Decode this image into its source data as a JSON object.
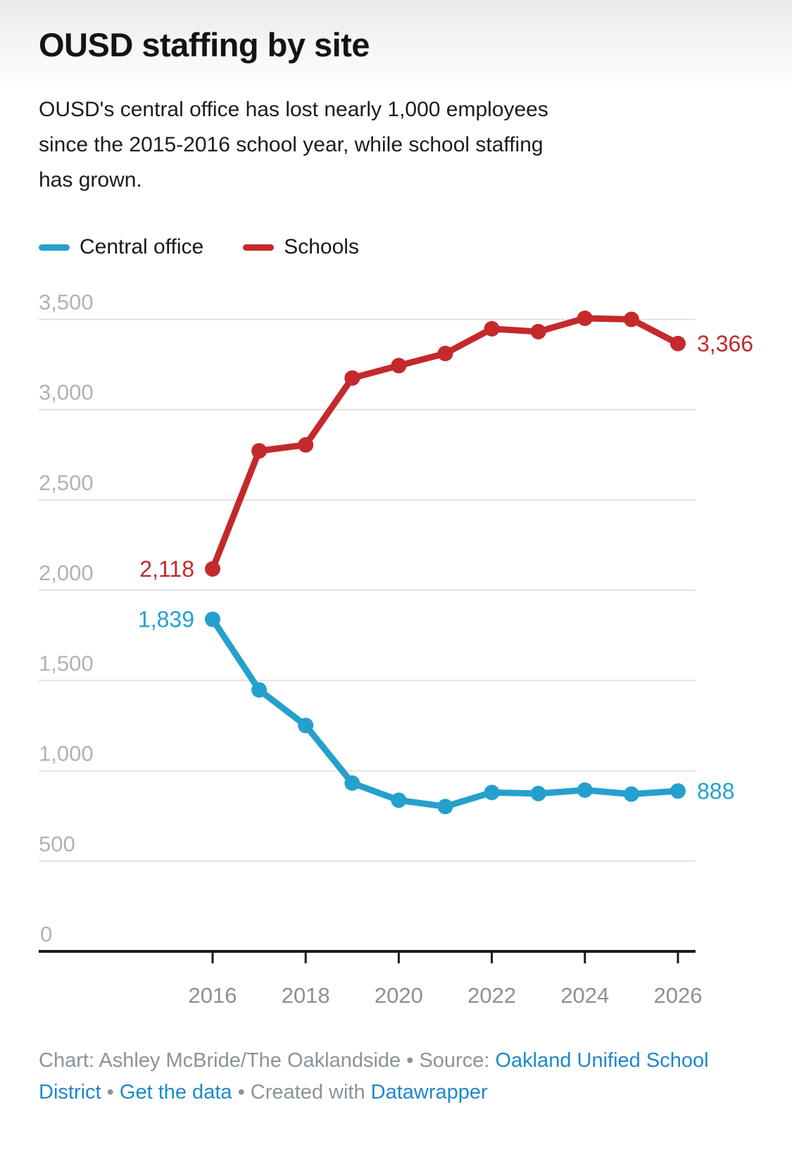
{
  "header": {
    "title": "OUSD staffing by site",
    "subtitle_lines": [
      "OUSD's central office has lost nearly 1,000 employees",
      "since the 2015-2016 school year, while school staffing",
      "has grown."
    ]
  },
  "legend": {
    "items": [
      {
        "label": "Central office",
        "color": "#25a0cd"
      },
      {
        "label": "Schools",
        "color": "#c4292b"
      }
    ]
  },
  "chart_data": {
    "type": "line",
    "x": [
      2016,
      2017,
      2018,
      2019,
      2020,
      2021,
      2022,
      2023,
      2024,
      2025,
      2026
    ],
    "series": [
      {
        "name": "Central office",
        "color": "#25a0cd",
        "values": [
          1839,
          1448,
          1251,
          932,
          837,
          802,
          880,
          874,
          893,
          871,
          888
        ]
      },
      {
        "name": "Schools",
        "color": "#c4292b",
        "values": [
          2118,
          2772,
          2805,
          3175,
          3244,
          3311,
          3448,
          3432,
          3506,
          3500,
          3366
        ]
      }
    ],
    "ylim": [
      0,
      3500
    ],
    "grid": true,
    "legend_position": "top",
    "y_ticks": [
      {
        "value": 0,
        "label": "0"
      },
      {
        "value": 500,
        "label": "500"
      },
      {
        "value": 1000,
        "label": "1,000"
      },
      {
        "value": 1500,
        "label": "1,500"
      },
      {
        "value": 2000,
        "label": "2,000"
      },
      {
        "value": 2500,
        "label": "2,500"
      },
      {
        "value": 3000,
        "label": "3,000"
      },
      {
        "value": 3500,
        "label": "3,500"
      }
    ],
    "x_ticks": [
      {
        "value": 2016,
        "label": "2016"
      },
      {
        "value": 2018,
        "label": "2018"
      },
      {
        "value": 2020,
        "label": "2020"
      },
      {
        "value": 2022,
        "label": "2022"
      },
      {
        "value": 2024,
        "label": "2024"
      },
      {
        "value": 2026,
        "label": "2026"
      }
    ],
    "point_labels": [
      {
        "series": "Schools",
        "x": 2016,
        "text": "2,118",
        "side": "left"
      },
      {
        "series": "Central office",
        "x": 2016,
        "text": "1,839",
        "side": "left"
      },
      {
        "series": "Schools",
        "x": 2026,
        "text": "3,366",
        "side": "right"
      },
      {
        "series": "Central office",
        "x": 2026,
        "text": "888",
        "side": "right"
      }
    ],
    "colors": {
      "grid": "#e3e3e3",
      "axis": "#1a1a1a",
      "y_tick_label": "#b2b2b2",
      "x_tick_label": "#8f8f8f"
    }
  },
  "footer": {
    "segments": [
      {
        "text": "Chart: Ashley McBride/The Oaklandside • Source: ",
        "link": false
      },
      {
        "text": "Oakland Unified School District",
        "link": true
      },
      {
        "text": " • ",
        "link": false
      },
      {
        "text": "Get the data",
        "link": true
      },
      {
        "text": " • Created with ",
        "link": false
      },
      {
        "text": "Datawrapper",
        "link": true
      }
    ]
  }
}
